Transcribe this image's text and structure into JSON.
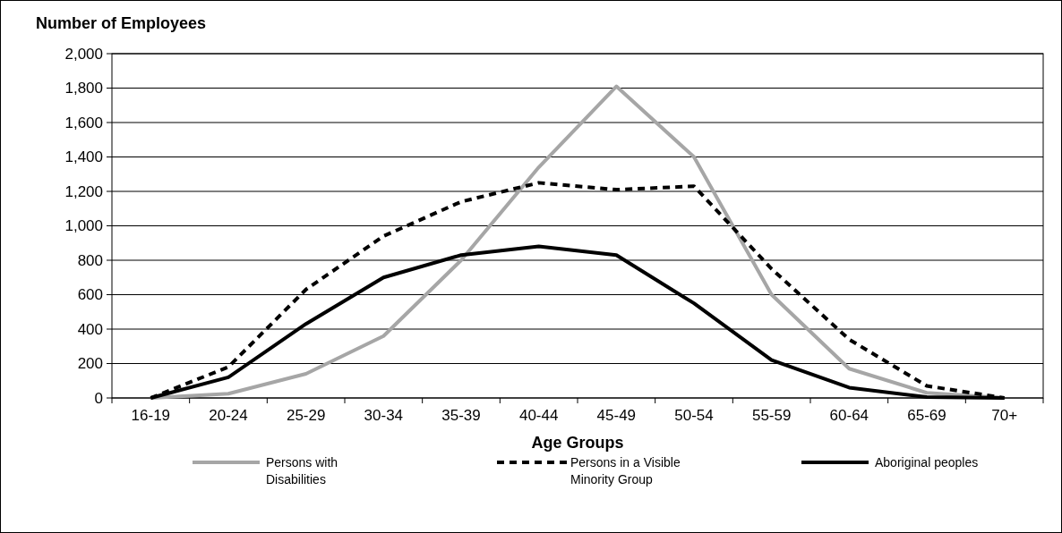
{
  "chart_data": {
    "type": "line",
    "ylabel": "Number of Employees",
    "xlabel": "Age Groups",
    "categories": [
      "16-19",
      "20-24",
      "25-29",
      "30-34",
      "35-39",
      "40-44",
      "45-49",
      "50-54",
      "55-59",
      "60-64",
      "65-69",
      "70+"
    ],
    "series": [
      {
        "name": "Persons with Disabilities",
        "color": "#a6a6a6",
        "line_style": "solid",
        "values": [
          0,
          25,
          140,
          360,
          800,
          1340,
          1810,
          1400,
          600,
          170,
          30,
          0
        ]
      },
      {
        "name": "Persons in a Visible Minority Group",
        "color": "#000000",
        "line_style": "dashed",
        "values": [
          0,
          180,
          630,
          940,
          1140,
          1250,
          1210,
          1230,
          750,
          340,
          70,
          0
        ]
      },
      {
        "name": "Aboriginal peoples",
        "color": "#000000",
        "line_style": "solid",
        "values": [
          0,
          120,
          430,
          700,
          830,
          880,
          830,
          550,
          220,
          60,
          5,
          0
        ]
      }
    ],
    "ylim": [
      0,
      2000
    ],
    "yticks": [
      0,
      200,
      400,
      600,
      800,
      {
        "value": 1000,
        "label": "1,000"
      },
      {
        "value": 1200,
        "label": "1,200"
      },
      {
        "value": 1400,
        "label": "1,400"
      },
      {
        "value": 1600,
        "label": "1,600"
      },
      {
        "value": 1800,
        "label": "1,800"
      },
      {
        "value": 2000,
        "label": "2,000"
      }
    ],
    "grid": "y",
    "legend": "bottom",
    "marker": "none"
  }
}
